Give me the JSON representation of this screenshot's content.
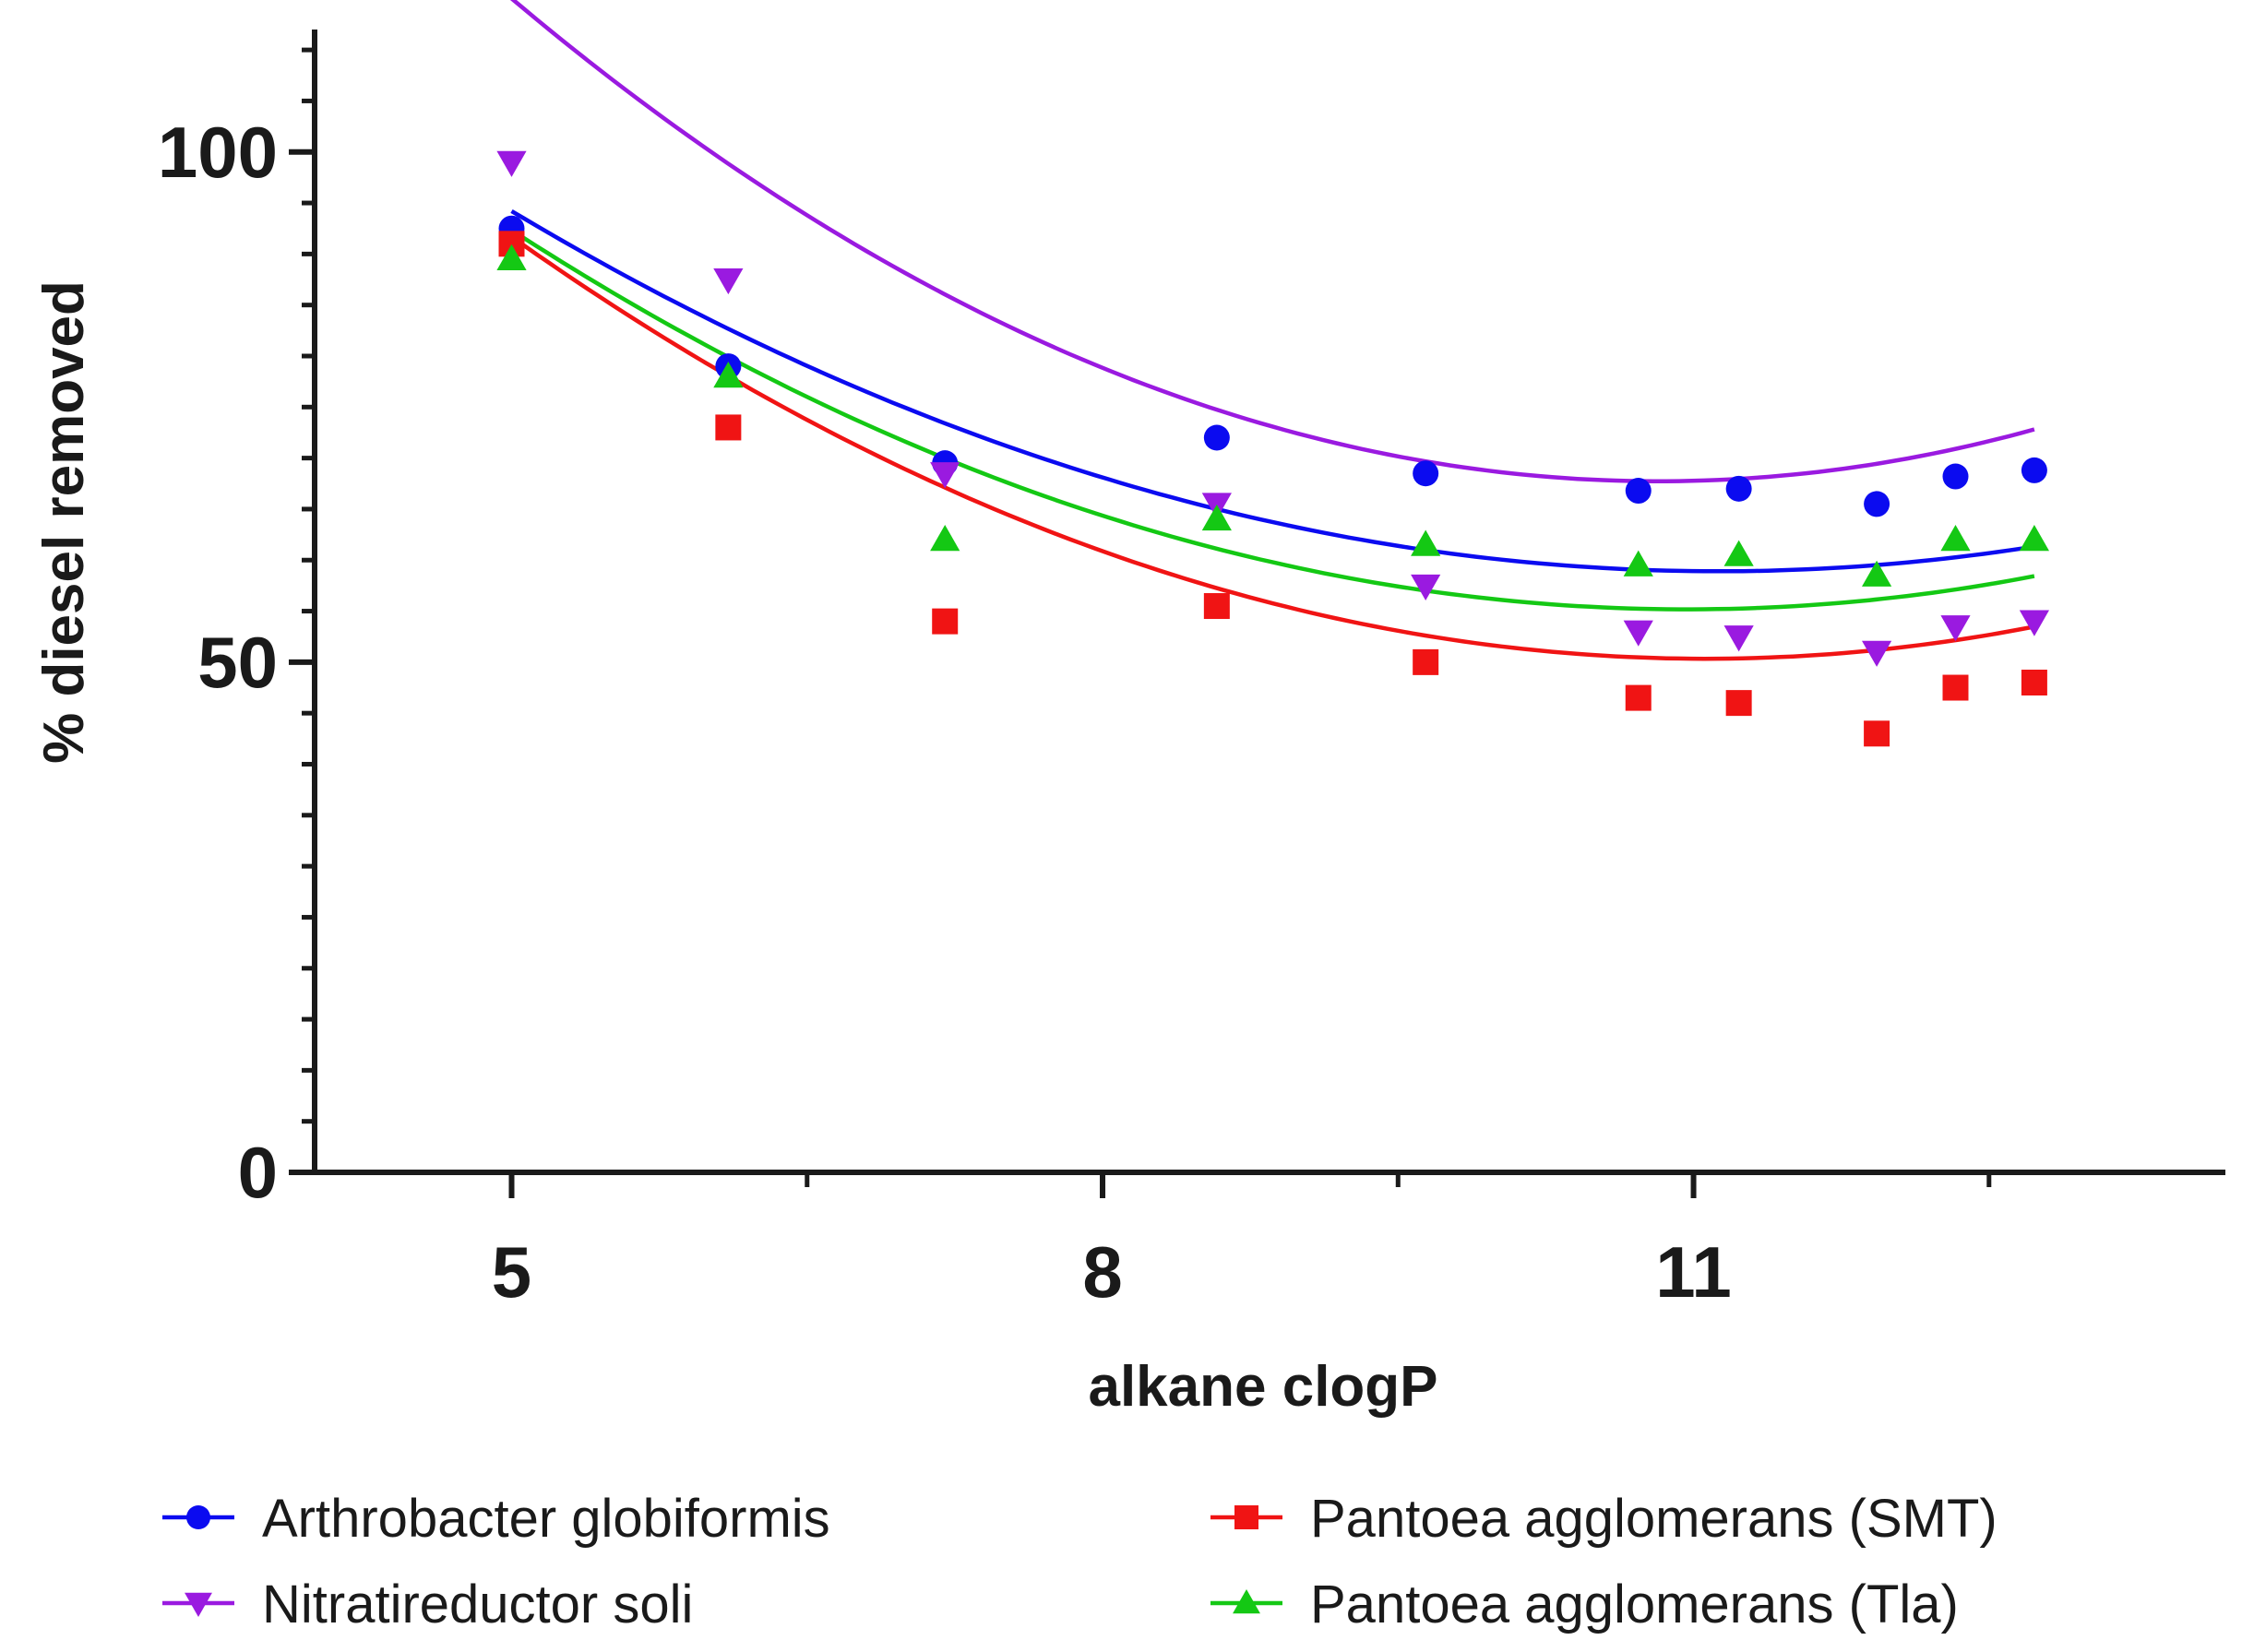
{
  "chart_data": {
    "type": "scatter",
    "title": "",
    "xlabel": "alkane clogP",
    "ylabel": "%  diesel removed",
    "xlim": [
      4,
      13.7
    ],
    "ylim": [
      0,
      112
    ],
    "x_ticks": [
      5,
      8,
      11
    ],
    "x_tick_labels": [
      "5",
      "8",
      "11"
    ],
    "x_minor_ticks": [
      6.5,
      9.5,
      12.5
    ],
    "y_ticks": [
      0,
      50,
      100
    ],
    "y_tick_labels": [
      "0",
      "50",
      "100"
    ],
    "y_minor_step": 5,
    "grid": false,
    "legend_position": "bottom",
    "fit": "second-order polynomial",
    "x": [
      5.0,
      6.1,
      7.2,
      8.58,
      9.64,
      10.72,
      11.23,
      11.93,
      12.33,
      12.73
    ],
    "series": [
      {
        "name": "Arthrobacter globiformis",
        "marker": "circle",
        "color": "#0b0bf0",
        "values": [
          92.5,
          79,
          69.5,
          72,
          68.5,
          66.8,
          67,
          65.5,
          68.2,
          68.8
        ],
        "fit_coefficients": [
          175.34,
          -20.93,
          0.9406
        ]
      },
      {
        "name": "Nitratireductor soli",
        "marker": "triangle-down",
        "color": "#9a1ae0",
        "values": [
          99,
          87.5,
          68.5,
          65.5,
          57.5,
          53,
          52.5,
          51,
          53.5,
          54
        ],
        "fit_coefficients": [
          231.19,
          -30.21,
          1.3958
        ]
      },
      {
        "name": "Pantoea agglomerans (SMT)",
        "marker": "square",
        "color": "#f01414",
        "values": [
          91,
          73,
          54,
          55.5,
          50,
          46.5,
          46,
          43,
          47.5,
          48
        ],
        "fit_coefficients": [
          188.08,
          -24.91,
          1.1262
        ]
      },
      {
        "name": "Pantoea agglomerans (Tla)",
        "marker": "triangle-up",
        "color": "#14c814",
        "values": [
          89.5,
          78,
          62,
          64,
          61.5,
          59.5,
          60.5,
          58.5,
          62,
          62
        ],
        "fit_coefficients": [
          180.73,
          -22.9,
          1.0442
        ]
      }
    ]
  }
}
